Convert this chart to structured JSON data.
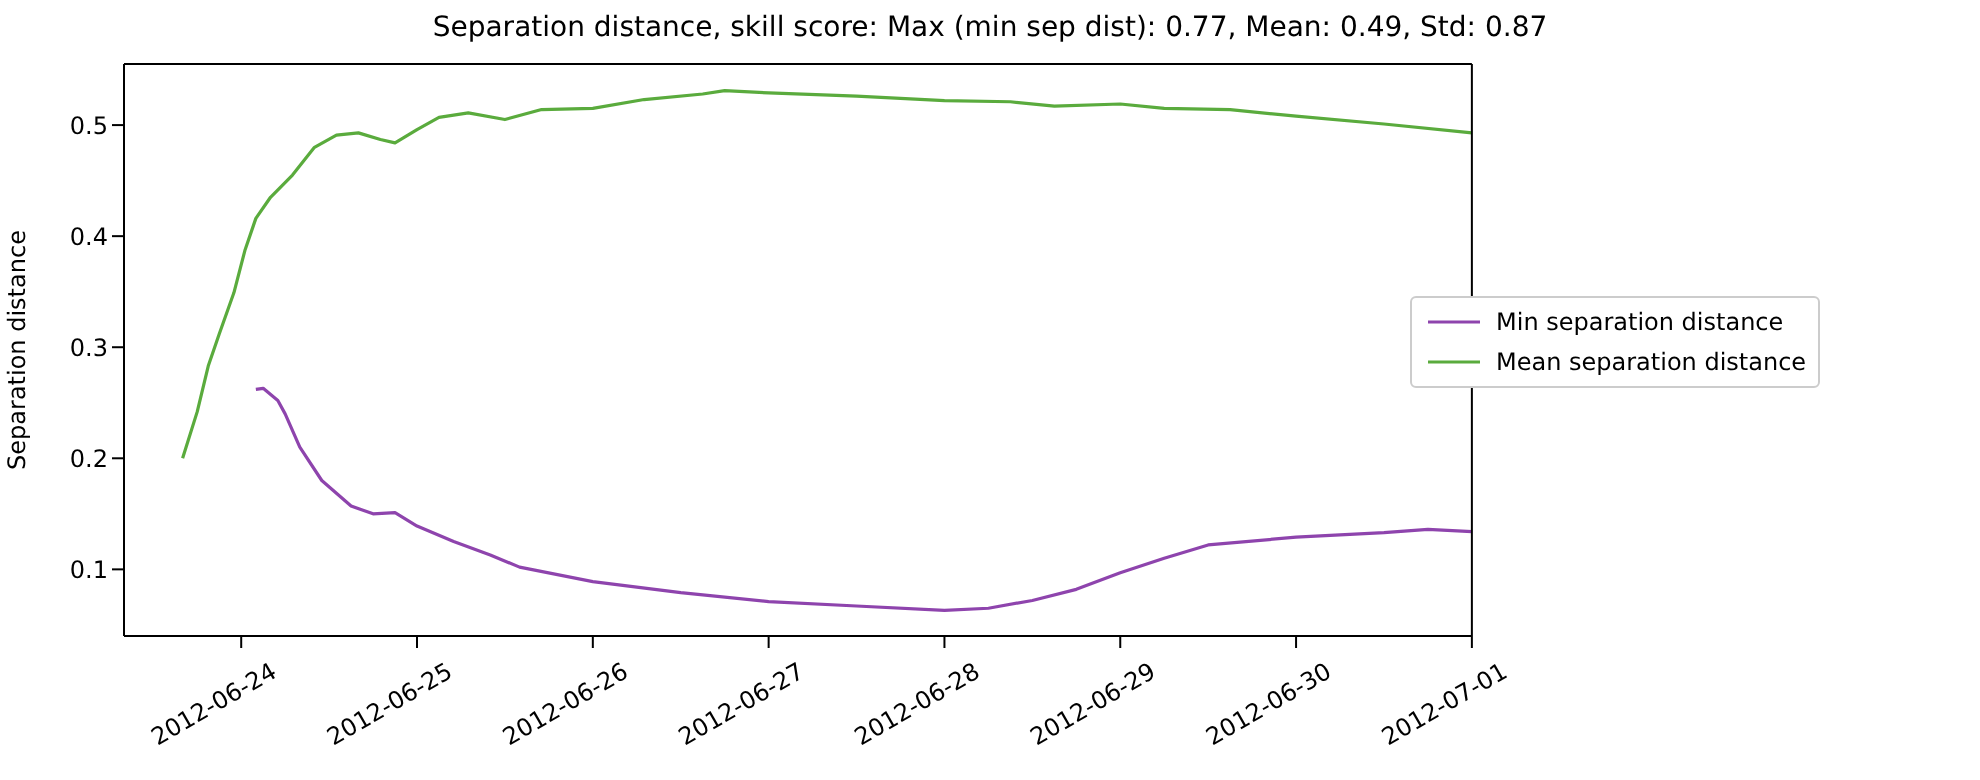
{
  "chart_data": {
    "type": "line",
    "title": "Separation distance, skill score: Max (min sep dist): 0.77, Mean: 0.49, Std: 0.87",
    "ylabel": "Separation distance",
    "xlim": [
      "2012-06-23T08:00",
      "2012-07-01"
    ],
    "xticks": [
      "2012-06-24",
      "2012-06-25",
      "2012-06-26",
      "2012-06-27",
      "2012-06-28",
      "2012-06-29",
      "2012-06-30",
      "2012-07-01"
    ],
    "ylim": [
      0.04,
      0.555
    ],
    "yticks": [
      0.1,
      0.2,
      0.3,
      0.4,
      0.5
    ],
    "grid": false,
    "legend": "right",
    "marker": "none",
    "line_style": "solid",
    "series": [
      {
        "name": "Min separation distance",
        "color": "#8e44ad",
        "x": [
          "2012-06-24T02:00",
          "2012-06-24T03:00",
          "2012-06-24T05:00",
          "2012-06-24T06:00",
          "2012-06-24T08:00",
          "2012-06-24T11:00",
          "2012-06-24T15:00",
          "2012-06-24T18:00",
          "2012-06-24T21:00",
          "2012-06-25T00:00",
          "2012-06-25T05:00",
          "2012-06-25T10:00",
          "2012-06-25T14:00",
          "2012-06-26T00:00",
          "2012-06-26T12:00",
          "2012-06-27T00:00",
          "2012-06-27T12:00",
          "2012-06-28T00:00",
          "2012-06-28T06:00",
          "2012-06-28T12:00",
          "2012-06-28T18:00",
          "2012-06-29T00:00",
          "2012-06-29T06:00",
          "2012-06-29T12:00",
          "2012-06-30T00:00",
          "2012-06-30T12:00",
          "2012-06-30T18:00",
          "2012-07-01T00:00"
        ],
        "values": [
          0.262,
          0.263,
          0.252,
          0.24,
          0.21,
          0.18,
          0.157,
          0.15,
          0.151,
          0.139,
          0.125,
          0.113,
          0.102,
          0.089,
          0.079,
          0.071,
          0.067,
          0.063,
          0.065,
          0.072,
          0.082,
          0.097,
          0.11,
          0.122,
          0.129,
          0.133,
          0.136,
          0.134
        ]
      },
      {
        "name": "Mean separation distance",
        "color": "#5aab3d",
        "x": [
          "2012-06-23T16:00",
          "2012-06-23T18:00",
          "2012-06-23T19:30",
          "2012-06-23T21:00",
          "2012-06-23T23:00",
          "2012-06-24T00:30",
          "2012-06-24T02:00",
          "2012-06-24T04:00",
          "2012-06-24T07:00",
          "2012-06-24T10:00",
          "2012-06-24T13:00",
          "2012-06-24T16:00",
          "2012-06-24T19:00",
          "2012-06-24T21:00",
          "2012-06-25T00:00",
          "2012-06-25T03:00",
          "2012-06-25T07:00",
          "2012-06-25T12:00",
          "2012-06-25T17:00",
          "2012-06-26T00:00",
          "2012-06-26T07:00",
          "2012-06-26T15:00",
          "2012-06-26T18:00",
          "2012-06-27T00:00",
          "2012-06-27T12:00",
          "2012-06-28T00:00",
          "2012-06-28T09:00",
          "2012-06-28T15:00",
          "2012-06-29T00:00",
          "2012-06-29T06:00",
          "2012-06-29T15:00",
          "2012-06-30T00:00",
          "2012-06-30T12:00",
          "2012-07-01T00:00"
        ],
        "values": [
          0.2,
          0.242,
          0.283,
          0.312,
          0.349,
          0.387,
          0.416,
          0.435,
          0.455,
          0.48,
          0.491,
          0.493,
          0.487,
          0.484,
          0.496,
          0.507,
          0.511,
          0.505,
          0.514,
          0.515,
          0.523,
          0.528,
          0.531,
          0.529,
          0.526,
          0.522,
          0.521,
          0.517,
          0.519,
          0.515,
          0.514,
          0.508,
          0.501,
          0.493
        ]
      }
    ]
  }
}
